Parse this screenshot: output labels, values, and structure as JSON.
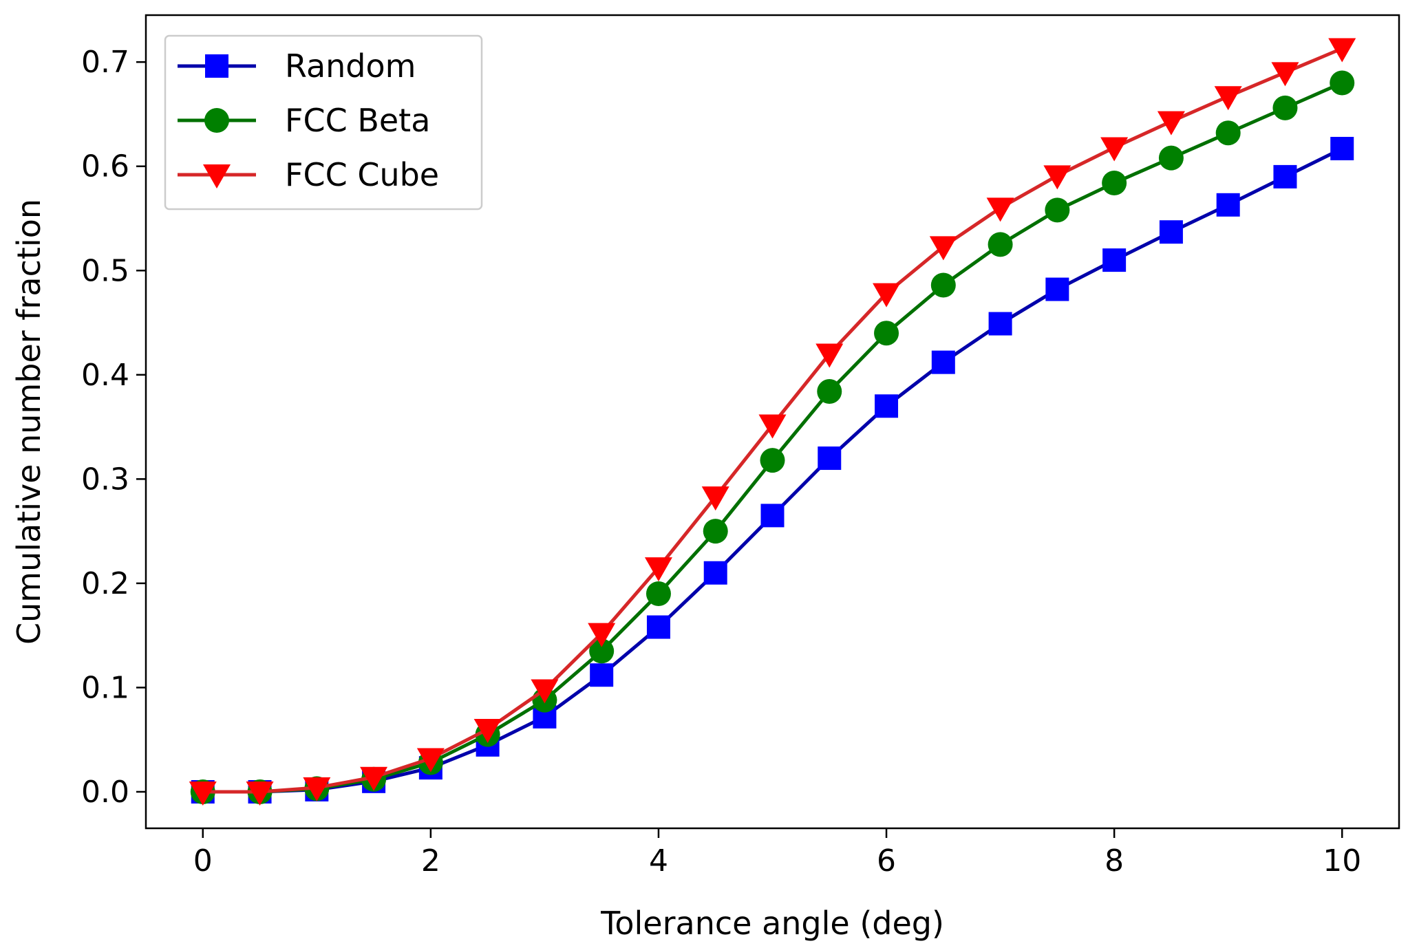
{
  "chart_data": {
    "type": "line",
    "xlabel": "Tolerance angle (deg)",
    "ylabel": "Cumulative number fraction",
    "xlim": [
      -0.5,
      10.5
    ],
    "ylim": [
      -0.035,
      0.745
    ],
    "xticks": [
      0,
      2,
      4,
      6,
      8,
      10
    ],
    "yticks": [
      0.0,
      0.1,
      0.2,
      0.3,
      0.4,
      0.5,
      0.6,
      0.7
    ],
    "xtick_labels": [
      "0",
      "2",
      "4",
      "6",
      "8",
      "10"
    ],
    "ytick_labels": [
      "0.0",
      "0.1",
      "0.2",
      "0.3",
      "0.4",
      "0.5",
      "0.6",
      "0.7"
    ],
    "grid": false,
    "legend_position": "top-left",
    "x": [
      0,
      0.5,
      1,
      1.5,
      2,
      2.5,
      3,
      3.5,
      4,
      4.5,
      5,
      5.5,
      6,
      6.5,
      7,
      7.5,
      8,
      8.5,
      9,
      9.5,
      10
    ],
    "series": [
      {
        "name": "Random",
        "color": "#0000ff",
        "line_color": "#0000aa",
        "marker": "square",
        "values": [
          0.0,
          0.0,
          0.002,
          0.01,
          0.023,
          0.045,
          0.072,
          0.112,
          0.158,
          0.21,
          0.265,
          0.32,
          0.37,
          0.412,
          0.449,
          0.482,
          0.51,
          0.537,
          0.563,
          0.59,
          0.617
        ]
      },
      {
        "name": "FCC Beta",
        "color": "#008000",
        "line_color": "#007000",
        "marker": "circle",
        "values": [
          0.0,
          0.0,
          0.003,
          0.012,
          0.028,
          0.055,
          0.088,
          0.135,
          0.19,
          0.25,
          0.318,
          0.384,
          0.44,
          0.486,
          0.525,
          0.558,
          0.584,
          0.608,
          0.632,
          0.656,
          0.68
        ]
      },
      {
        "name": "FCC Cube",
        "color": "#ff0000",
        "line_color": "#d62728",
        "marker": "triangle-down",
        "values": [
          0.0,
          0.0,
          0.004,
          0.014,
          0.032,
          0.06,
          0.098,
          0.152,
          0.215,
          0.283,
          0.352,
          0.42,
          0.478,
          0.523,
          0.56,
          0.591,
          0.618,
          0.643,
          0.667,
          0.69,
          0.713
        ]
      }
    ]
  }
}
